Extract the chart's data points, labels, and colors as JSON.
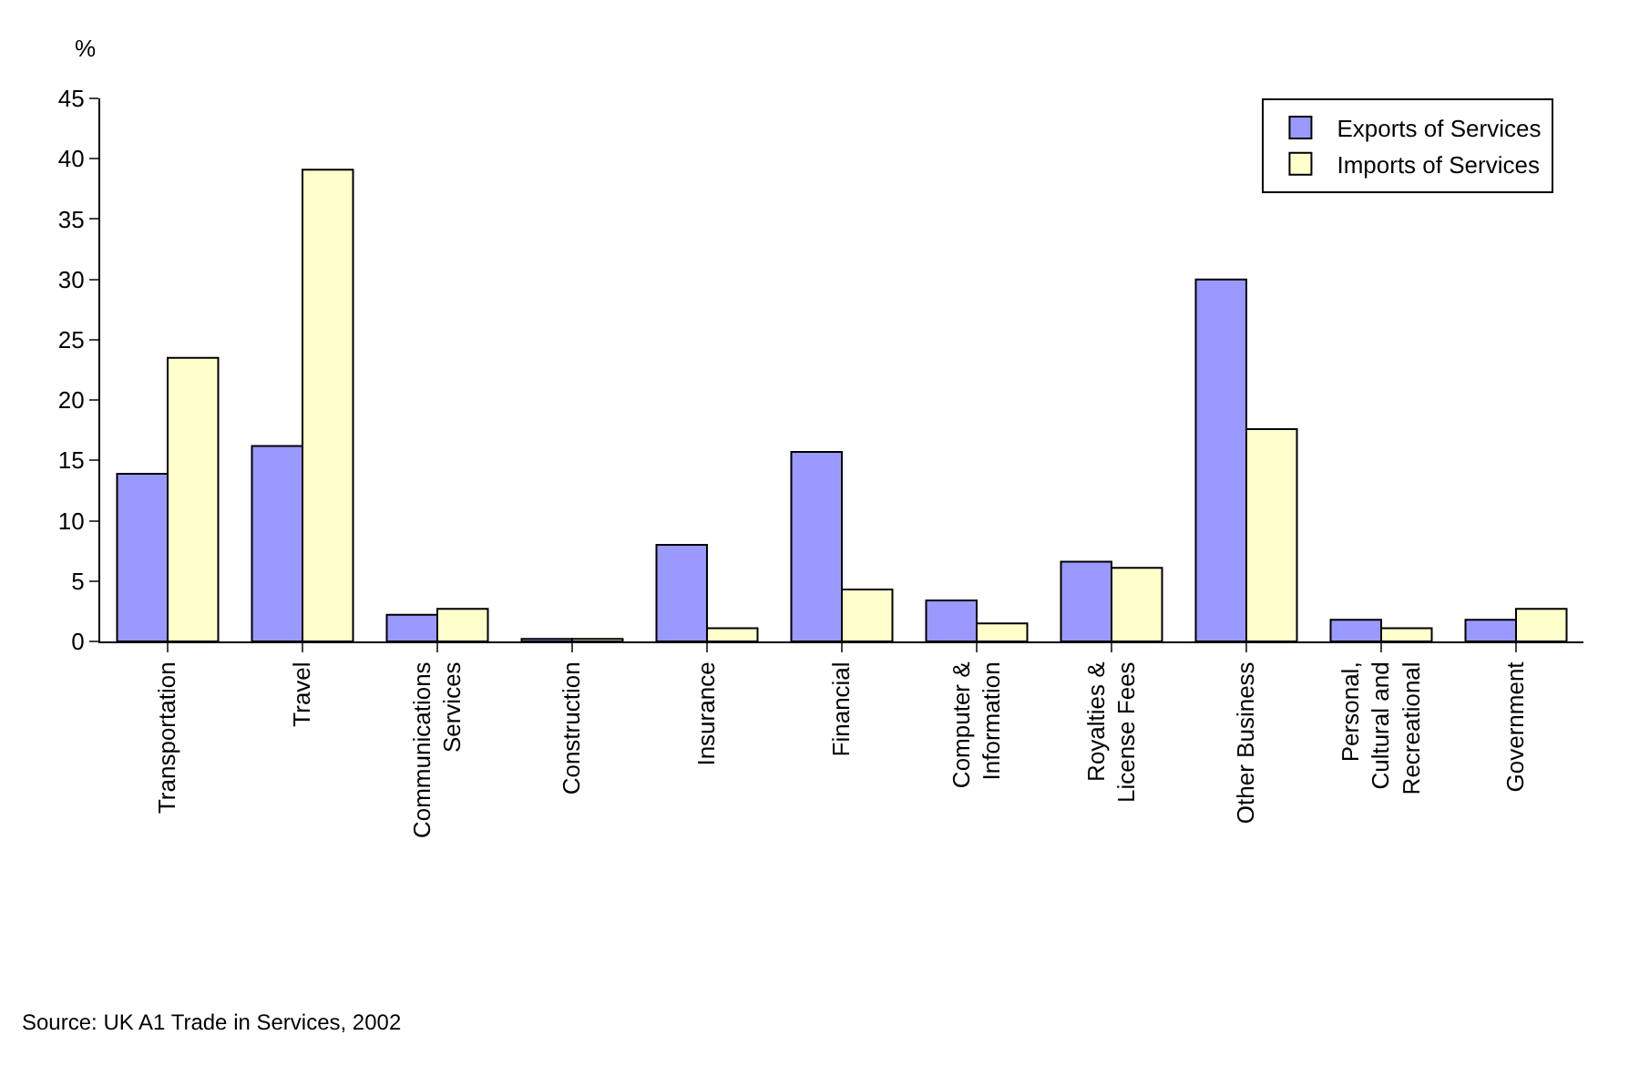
{
  "chart_data": {
    "type": "bar",
    "ylabel": "%",
    "categories": [
      "Transportation",
      "Travel",
      "Communications Services",
      "Construction",
      "Insurance",
      "Financial",
      "Computer & Information",
      "Royalties & License Fees",
      "Other Business",
      "Personal, Cultural and Recreational",
      "Government"
    ],
    "series": [
      {
        "name": "Exports of Services",
        "color": "#9999ff",
        "values": [
          13.9,
          16.2,
          2.2,
          0.2,
          8.0,
          15.7,
          3.4,
          6.6,
          30.0,
          1.8,
          1.8
        ]
      },
      {
        "name": "Imports of Services",
        "color": "#ffffcc",
        "values": [
          23.5,
          39.1,
          2.7,
          0.2,
          1.1,
          4.3,
          1.5,
          6.1,
          17.6,
          1.1,
          2.7
        ]
      }
    ],
    "ylim": [
      0,
      45
    ],
    "yticks": [
      0,
      5,
      10,
      15,
      20,
      25,
      30,
      35,
      40,
      45
    ],
    "grid": false,
    "legend": "top right",
    "annotations": [
      "Source: UK A1 Trade in Services, 2002"
    ]
  }
}
